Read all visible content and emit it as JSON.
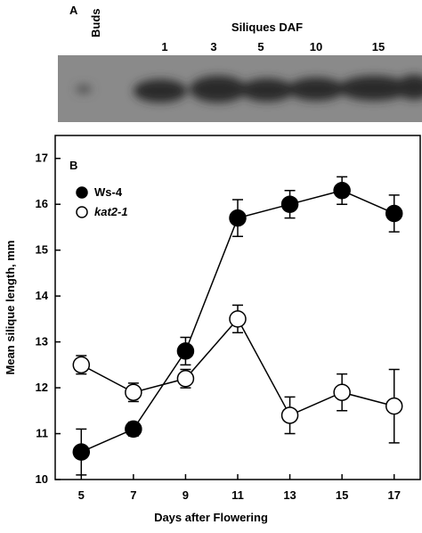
{
  "panel_a": {
    "label": "A",
    "buds": "Buds",
    "title": "Siliques DAF",
    "lanes": [
      "1",
      "3",
      "5",
      "10",
      "15"
    ]
  },
  "chart_data": {
    "type": "line",
    "label": "B",
    "xlabel": "Days after Flowering",
    "ylabel": "Mean silique length, mm",
    "x": [
      5,
      7,
      9,
      11,
      13,
      15,
      17
    ],
    "series": [
      {
        "name": "Ws-4",
        "color": "#000000",
        "fill": "#000000",
        "values": [
          10.6,
          11.1,
          12.8,
          15.7,
          16.0,
          16.3,
          15.8
        ],
        "errors": [
          0.5,
          0.15,
          0.3,
          0.4,
          0.3,
          0.3,
          0.4
        ]
      },
      {
        "name": "kat2-1",
        "color": "#000000",
        "fill": "#ffffff",
        "values": [
          12.5,
          11.9,
          12.2,
          13.5,
          11.4,
          11.9,
          11.6
        ],
        "errors": [
          0.2,
          0.2,
          0.2,
          0.3,
          0.4,
          0.4,
          0.8
        ]
      }
    ],
    "xlim": [
      4,
      18
    ],
    "ylim": [
      10,
      17.5
    ],
    "xticks": [
      5,
      7,
      9,
      11,
      13,
      15,
      17
    ],
    "yticks": [
      10,
      11,
      12,
      13,
      14,
      15,
      16,
      17
    ],
    "legend": "upper left"
  }
}
